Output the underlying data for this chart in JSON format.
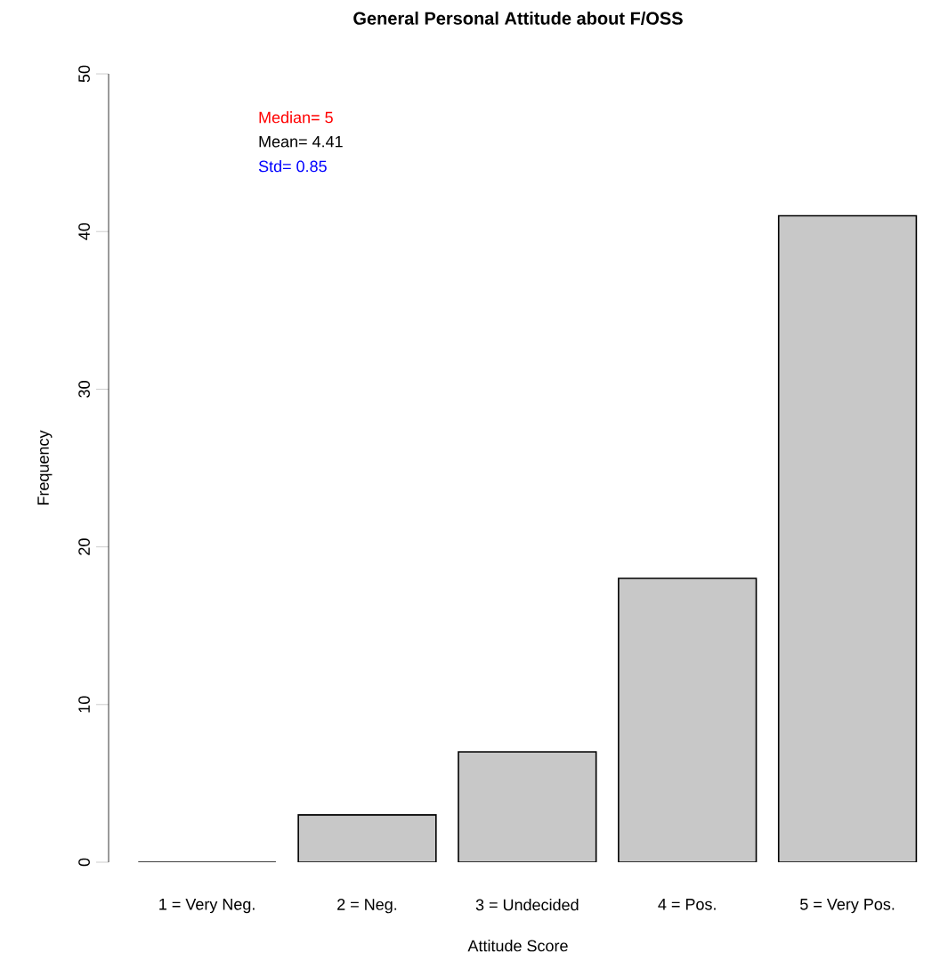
{
  "chart_data": {
    "type": "bar",
    "title": "General Personal Attitude about F/OSS",
    "xlabel": "Attitude Score",
    "ylabel": "Frequency",
    "categories": [
      "1 = Very Neg.",
      "2 = Neg.",
      "3 = Undecided",
      "4 = Pos.",
      "5 = Very Pos."
    ],
    "values": [
      0,
      3,
      7,
      18,
      41
    ],
    "color": "#c8c8c8",
    "ylim": [
      0,
      50
    ],
    "yticks": [
      0,
      10,
      20,
      30,
      40,
      50
    ],
    "grid": false,
    "annotations": [
      "Median= 5",
      "Mean= 4.41",
      "Std= 0.85"
    ]
  }
}
